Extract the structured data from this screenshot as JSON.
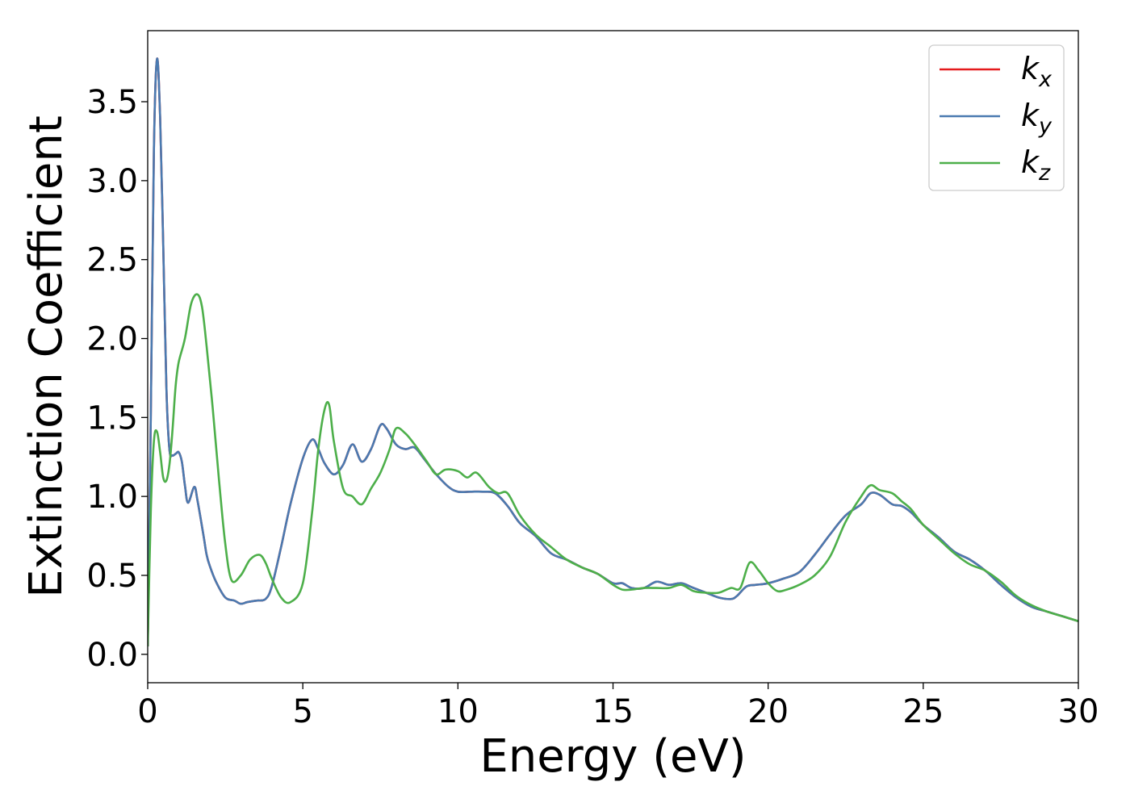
{
  "chart_data": {
    "type": "line",
    "xlabel": "Energy (eV)",
    "ylabel": "Extinction Coefficient",
    "xlim": [
      0,
      30
    ],
    "ylim": [
      -0.18,
      3.95
    ],
    "xticks": [
      "0",
      "5",
      "10",
      "15",
      "20",
      "25",
      "30"
    ],
    "yticks": [
      "0.0",
      "0.5",
      "1.0",
      "1.5",
      "2.0",
      "2.5",
      "3.0",
      "3.5"
    ],
    "grid": false,
    "legend_position": "top-right",
    "series": [
      {
        "name": "x",
        "legend": {
          "base": "k",
          "sub": "x"
        },
        "color": "#e41a1c",
        "x": [
          0,
          0.1,
          0.2,
          0.3,
          0.4,
          0.5,
          0.6,
          0.7,
          0.8,
          0.9,
          1.0,
          1.1,
          1.2,
          1.3,
          1.5,
          1.6,
          1.8,
          1.9,
          2.0,
          2.2,
          2.5,
          2.8,
          3.0,
          3.2,
          3.5,
          3.8,
          4.0,
          4.3,
          4.6,
          5.0,
          5.3,
          5.5,
          5.7,
          6.0,
          6.3,
          6.6,
          6.9,
          7.2,
          7.5,
          7.7,
          8.0,
          8.3,
          8.6,
          8.9,
          9.3,
          9.7,
          10.0,
          10.4,
          10.8,
          11.2,
          11.6,
          12.0,
          12.5,
          13.0,
          13.5,
          14.0,
          14.5,
          15.0,
          15.3,
          15.6,
          16.0,
          16.4,
          16.8,
          17.2,
          17.6,
          18.0,
          18.4,
          18.8,
          19.0,
          19.3,
          19.6,
          20.0,
          20.5,
          21.0,
          21.5,
          22.0,
          22.5,
          23.0,
          23.3,
          23.6,
          24.0,
          24.3,
          24.6,
          25.0,
          25.5,
          26.0,
          26.5,
          27.0,
          27.5,
          28.0,
          28.5,
          29.0,
          29.5,
          30.0
        ],
        "values": [
          0.05,
          1.5,
          3.2,
          3.77,
          3.4,
          2.6,
          1.7,
          1.3,
          1.26,
          1.27,
          1.28,
          1.22,
          1.07,
          0.96,
          1.06,
          0.98,
          0.75,
          0.63,
          0.56,
          0.46,
          0.36,
          0.34,
          0.32,
          0.33,
          0.34,
          0.35,
          0.43,
          0.68,
          0.95,
          1.24,
          1.36,
          1.3,
          1.21,
          1.14,
          1.2,
          1.33,
          1.22,
          1.3,
          1.45,
          1.43,
          1.33,
          1.3,
          1.31,
          1.24,
          1.14,
          1.06,
          1.03,
          1.03,
          1.03,
          1.02,
          0.94,
          0.83,
          0.75,
          0.64,
          0.6,
          0.55,
          0.51,
          0.45,
          0.45,
          0.42,
          0.42,
          0.46,
          0.44,
          0.45,
          0.42,
          0.39,
          0.36,
          0.35,
          0.37,
          0.43,
          0.44,
          0.45,
          0.48,
          0.52,
          0.63,
          0.76,
          0.88,
          0.95,
          1.02,
          1.01,
          0.95,
          0.94,
          0.9,
          0.82,
          0.74,
          0.65,
          0.6,
          0.53,
          0.44,
          0.36,
          0.3,
          0.27,
          0.24,
          0.21
        ]
      },
      {
        "name": "y",
        "legend": {
          "base": "k",
          "sub": "y"
        },
        "color": "#4a7ab0",
        "x": [
          0,
          0.1,
          0.2,
          0.3,
          0.4,
          0.5,
          0.6,
          0.7,
          0.8,
          0.9,
          1.0,
          1.1,
          1.2,
          1.3,
          1.5,
          1.6,
          1.8,
          1.9,
          2.0,
          2.2,
          2.5,
          2.8,
          3.0,
          3.2,
          3.5,
          3.8,
          4.0,
          4.3,
          4.6,
          5.0,
          5.3,
          5.5,
          5.7,
          6.0,
          6.3,
          6.6,
          6.9,
          7.2,
          7.5,
          7.7,
          8.0,
          8.3,
          8.6,
          8.9,
          9.3,
          9.7,
          10.0,
          10.4,
          10.8,
          11.2,
          11.6,
          12.0,
          12.5,
          13.0,
          13.5,
          14.0,
          14.5,
          15.0,
          15.3,
          15.6,
          16.0,
          16.4,
          16.8,
          17.2,
          17.6,
          18.0,
          18.4,
          18.8,
          19.0,
          19.3,
          19.6,
          20.0,
          20.5,
          21.0,
          21.5,
          22.0,
          22.5,
          23.0,
          23.3,
          23.6,
          24.0,
          24.3,
          24.6,
          25.0,
          25.5,
          26.0,
          26.5,
          27.0,
          27.5,
          28.0,
          28.5,
          29.0,
          29.5,
          30.0
        ],
        "values": [
          0.05,
          1.5,
          3.2,
          3.77,
          3.4,
          2.6,
          1.7,
          1.3,
          1.26,
          1.27,
          1.28,
          1.22,
          1.07,
          0.96,
          1.06,
          0.98,
          0.75,
          0.63,
          0.56,
          0.46,
          0.36,
          0.34,
          0.32,
          0.33,
          0.34,
          0.35,
          0.43,
          0.68,
          0.95,
          1.24,
          1.36,
          1.3,
          1.21,
          1.14,
          1.2,
          1.33,
          1.22,
          1.3,
          1.45,
          1.43,
          1.33,
          1.3,
          1.31,
          1.24,
          1.14,
          1.06,
          1.03,
          1.03,
          1.03,
          1.02,
          0.94,
          0.83,
          0.75,
          0.64,
          0.6,
          0.55,
          0.51,
          0.45,
          0.45,
          0.42,
          0.42,
          0.46,
          0.44,
          0.45,
          0.42,
          0.39,
          0.36,
          0.35,
          0.37,
          0.43,
          0.44,
          0.45,
          0.48,
          0.52,
          0.63,
          0.76,
          0.88,
          0.95,
          1.02,
          1.01,
          0.95,
          0.94,
          0.9,
          0.82,
          0.74,
          0.65,
          0.6,
          0.53,
          0.44,
          0.36,
          0.3,
          0.27,
          0.24,
          0.21
        ]
      },
      {
        "name": "z",
        "legend": {
          "base": "k",
          "sub": "z"
        },
        "color": "#4daf4a",
        "x": [
          0,
          0.1,
          0.2,
          0.3,
          0.4,
          0.5,
          0.6,
          0.7,
          0.8,
          0.9,
          1.0,
          1.2,
          1.4,
          1.6,
          1.75,
          1.9,
          2.1,
          2.3,
          2.5,
          2.7,
          3.0,
          3.3,
          3.6,
          3.8,
          4.0,
          4.3,
          4.6,
          5.0,
          5.3,
          5.5,
          5.7,
          5.85,
          6.0,
          6.3,
          6.6,
          6.9,
          7.2,
          7.5,
          7.8,
          8.0,
          8.3,
          8.6,
          9.0,
          9.3,
          9.6,
          10.0,
          10.3,
          10.6,
          11.0,
          11.3,
          11.6,
          12.0,
          12.5,
          13.0,
          13.5,
          14.0,
          14.5,
          15.0,
          15.3,
          15.6,
          16.0,
          16.4,
          16.8,
          17.2,
          17.6,
          18.0,
          18.4,
          18.8,
          19.1,
          19.4,
          19.7,
          20.0,
          20.3,
          20.6,
          21.0,
          21.5,
          22.0,
          22.5,
          23.0,
          23.3,
          23.6,
          24.0,
          24.3,
          24.6,
          25.0,
          25.5,
          26.0,
          26.5,
          27.0,
          27.5,
          28.0,
          28.5,
          29.0,
          29.5,
          30.0
        ],
        "values": [
          0.05,
          0.9,
          1.35,
          1.41,
          1.28,
          1.12,
          1.1,
          1.2,
          1.42,
          1.7,
          1.85,
          2.0,
          2.22,
          2.28,
          2.2,
          1.95,
          1.55,
          1.1,
          0.7,
          0.47,
          0.5,
          0.6,
          0.63,
          0.58,
          0.48,
          0.36,
          0.33,
          0.45,
          0.9,
          1.3,
          1.55,
          1.58,
          1.35,
          1.05,
          1.0,
          0.95,
          1.05,
          1.15,
          1.3,
          1.43,
          1.4,
          1.33,
          1.22,
          1.14,
          1.17,
          1.16,
          1.12,
          1.15,
          1.06,
          1.02,
          1.02,
          0.88,
          0.76,
          0.68,
          0.6,
          0.55,
          0.51,
          0.44,
          0.41,
          0.41,
          0.42,
          0.42,
          0.42,
          0.44,
          0.4,
          0.39,
          0.39,
          0.42,
          0.42,
          0.58,
          0.53,
          0.45,
          0.4,
          0.41,
          0.44,
          0.5,
          0.62,
          0.84,
          1.0,
          1.07,
          1.04,
          1.02,
          0.97,
          0.92,
          0.82,
          0.73,
          0.64,
          0.57,
          0.53,
          0.46,
          0.37,
          0.31,
          0.27,
          0.24,
          0.21
        ]
      }
    ]
  }
}
